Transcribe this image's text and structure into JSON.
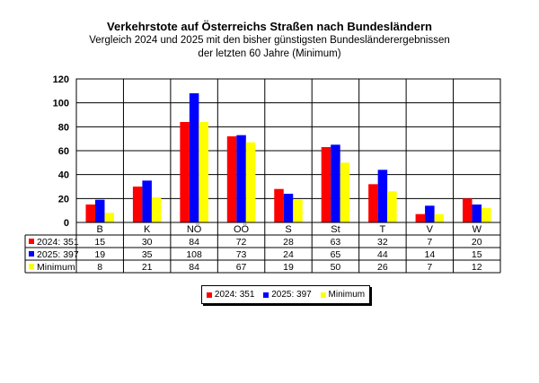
{
  "chart_data": {
    "type": "bar",
    "title": "Verkehrstote auf Österreichs Straßen nach Bundesländern",
    "subtitle_line1": "Vergleich 2024 und 2025 mit den bisher günstigsten Bundesländerergebnissen",
    "subtitle_line2": "der letzten 60 Jahre (Minimum)",
    "categories": [
      "B",
      "K",
      "NÖ",
      "OÖ",
      "S",
      "St",
      "T",
      "V",
      "W"
    ],
    "series": [
      {
        "name": "2024: 351",
        "color": "#ff0000",
        "values": [
          15,
          30,
          84,
          72,
          28,
          63,
          32,
          7,
          20
        ]
      },
      {
        "name": "2025: 397",
        "color": "#0000ff",
        "values": [
          19,
          35,
          108,
          73,
          24,
          65,
          44,
          14,
          15
        ]
      },
      {
        "name": "Minimum",
        "color": "#ffff00",
        "values": [
          8,
          21,
          84,
          67,
          19,
          50,
          26,
          7,
          12
        ]
      }
    ],
    "y_ticks": [
      "0",
      "20",
      "40",
      "60",
      "80",
      "100",
      "120"
    ],
    "ylim": [
      0,
      120
    ],
    "grid": true,
    "legend_position": "bottom-center",
    "data_table": true
  }
}
